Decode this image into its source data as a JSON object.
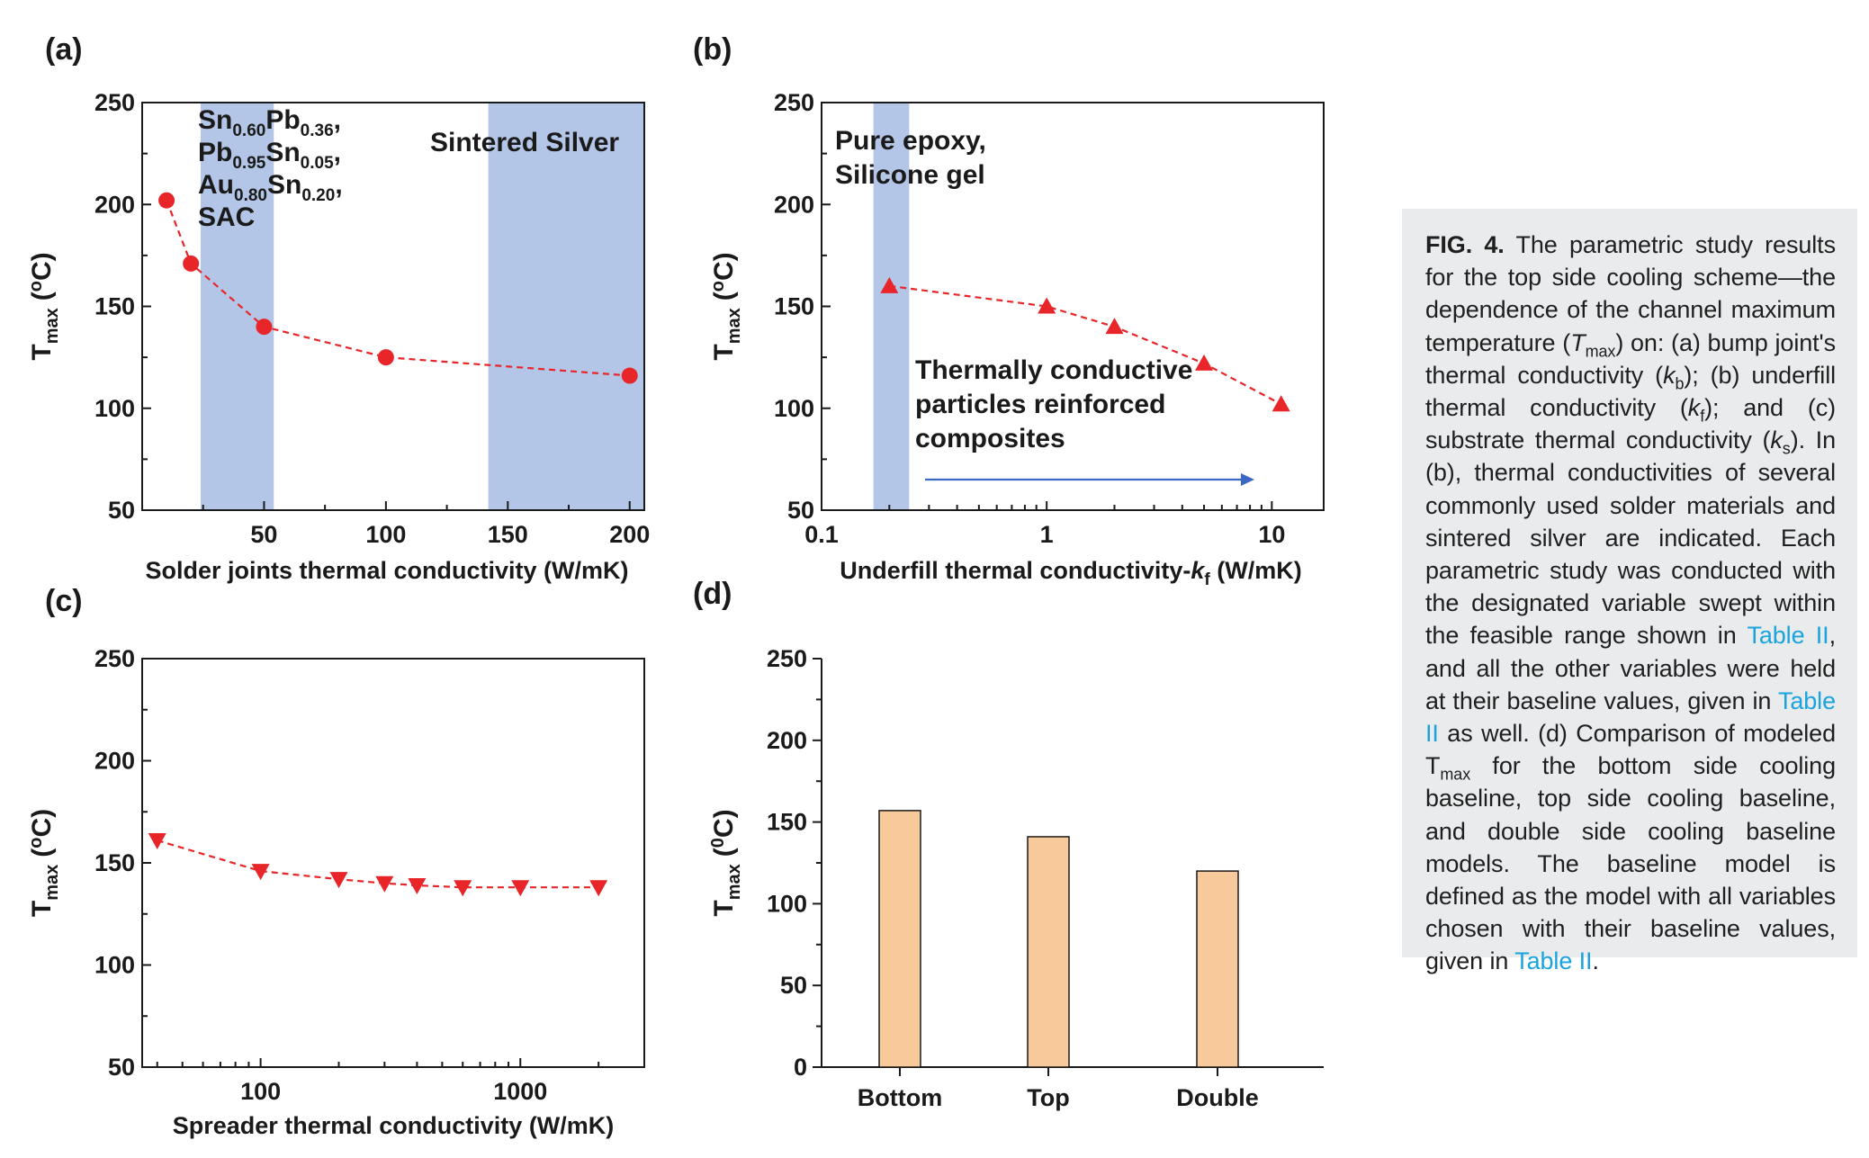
{
  "colors": {
    "series": "#e8262a",
    "band": "#b4c6e7",
    "bar": "#f8c99a",
    "arrow": "#3c68c4",
    "link": "#1aa3dc"
  },
  "chart_data": [
    {
      "panel": "(a)",
      "type": "line",
      "marker": "circle",
      "xscale": "linear",
      "xlabel": "Solder joints thermal conductivity (W/mK)",
      "ylabel": "T",
      "ylabel_sub": "max",
      "ylabel_unit": "(",
      "ylabel_deg": "o",
      "ylabel_unit_end": "C)",
      "xlim": [
        0,
        206
      ],
      "ylim": [
        50,
        250
      ],
      "xticks": [
        50,
        100,
        150,
        200
      ],
      "yticks": [
        50,
        100,
        150,
        200,
        250
      ],
      "x": [
        10,
        20,
        50,
        100,
        200
      ],
      "y": [
        202,
        171,
        140,
        125,
        116
      ],
      "bands": [
        [
          24,
          54
        ],
        [
          142,
          206
        ]
      ],
      "annotations": [
        {
          "lines": [
            [
              {
                "t": "Sn"
              },
              {
                "t": "0.60",
                "sub": true
              },
              {
                "t": "Pb"
              },
              {
                "t": "0.36",
                "sub": true
              },
              {
                "t": ","
              }
            ],
            [
              {
                "t": "Pb"
              },
              {
                "t": "0.95",
                "sub": true
              },
              {
                "t": "Sn"
              },
              {
                "t": "0.05",
                "sub": true
              },
              {
                "t": ","
              }
            ],
            [
              {
                "t": "Au"
              },
              {
                "t": "0.80",
                "sub": true
              },
              {
                "t": "Sn"
              },
              {
                "t": "0.20",
                "sub": true
              },
              {
                "t": ","
              }
            ],
            [
              {
                "t": "SAC"
              }
            ]
          ]
        },
        {
          "lines": [
            [
              {
                "t": "Sintered Silver"
              }
            ]
          ]
        }
      ]
    },
    {
      "panel": "(b)",
      "type": "line",
      "marker": "triangle-up",
      "xscale": "log",
      "xlabel": "Underfill thermal conductivity-",
      "xlabel_var": "k",
      "xlabel_var_sub": "f",
      "xlabel_unit": " (W/mK)",
      "ylabel": "T",
      "ylabel_sub": "max",
      "ylabel_unit": "(",
      "ylabel_deg": "o",
      "ylabel_unit_end": "C)",
      "xlim": [
        0.1,
        17
      ],
      "ylim": [
        50,
        250
      ],
      "xticks": [
        0.1,
        1,
        10
      ],
      "xtick_labels": [
        "0.1",
        "1",
        "10"
      ],
      "yticks": [
        50,
        100,
        150,
        200,
        250
      ],
      "x": [
        0.2,
        1,
        2,
        5,
        11
      ],
      "y": [
        160,
        150,
        140,
        122,
        102
      ],
      "bands": [
        [
          0.17,
          0.245
        ]
      ],
      "annotations": [
        {
          "lines": [
            [
              {
                "t": "Pure epoxy,"
              }
            ],
            [
              {
                "t": "Silicone gel"
              }
            ]
          ]
        },
        {
          "lines": [
            [
              {
                "t": "Thermally conductive"
              }
            ],
            [
              {
                "t": "particles reinforced"
              }
            ],
            [
              {
                "t": "composites"
              }
            ]
          ]
        }
      ]
    },
    {
      "panel": "(c)",
      "type": "line",
      "marker": "triangle-down",
      "xscale": "log",
      "xlabel": "Spreader thermal conductivity (W/mK)",
      "ylabel": "T",
      "ylabel_sub": "max",
      "ylabel_unit": "(",
      "ylabel_deg": "o",
      "ylabel_unit_end": "C)",
      "xlim": [
        35,
        3000
      ],
      "ylim": [
        50,
        250
      ],
      "xticks": [
        100,
        1000
      ],
      "xtick_labels": [
        "100",
        "1000"
      ],
      "yticks": [
        50,
        100,
        150,
        200,
        250
      ],
      "x": [
        40,
        100,
        200,
        300,
        400,
        600,
        1000,
        2000
      ],
      "y": [
        161,
        146,
        142,
        140,
        139,
        138,
        138,
        138
      ]
    },
    {
      "panel": "(d)",
      "type": "bar",
      "categories": [
        "Bottom",
        "Top",
        "Double"
      ],
      "values": [
        157,
        141,
        120
      ],
      "ylabel": "T",
      "ylabel_sub": "max",
      "ylabel_unit": "(",
      "ylabel_deg": "0",
      "ylabel_unit_end": "C)",
      "ylim": [
        0,
        250
      ],
      "yticks": [
        0,
        50,
        100,
        150,
        200,
        250
      ]
    }
  ],
  "caption": {
    "label": "FIG. 4.",
    "t1": " The parametric study results for the top side cooling scheme—the dependence of the channel maximum temperature (",
    "tmax_var": "T",
    "tmax_sub": "max",
    "t2": ") on: (a) bump joint's thermal conductivity (",
    "kb_var": "k",
    "kb_sub": "b",
    "t3": "); (b) underfill thermal conductivity (",
    "kf_var": "k",
    "kf_sub": "f",
    "t4": "); and (c) substrate thermal conductivity (",
    "ks_var": "k",
    "ks_sub": "s",
    "t5": "). In (b), thermal conductivities of several commonly used solder materials and sintered silver are indicated. Each parametric study was conducted with the designated variable swept within the feasible range shown in ",
    "link1": "Table II",
    "t6": ", and all the other variables were held at their baseline values, given in ",
    "link2": "Table II",
    "t7": " as well. (d) Comparison of modeled T",
    "t7_sub": "max",
    "t8": " for the bottom side cooling baseline, top side cooling baseline, and double side cooling baseline models. The baseline model is defined as the model with all variables chosen with their baseline values, given in ",
    "link3": "Table II",
    "t9": "."
  }
}
